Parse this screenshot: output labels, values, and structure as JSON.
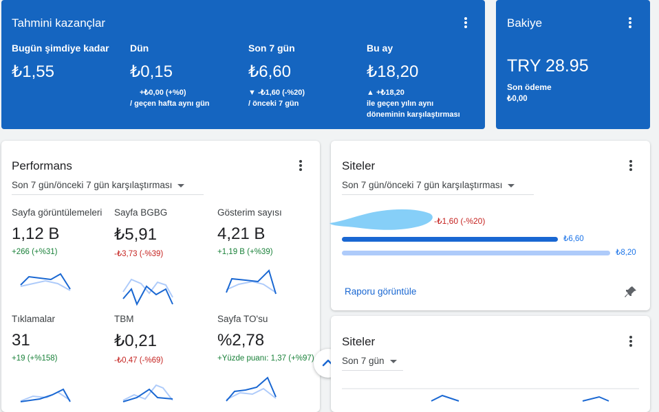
{
  "earnings": {
    "title": "Tahmini kazançlar",
    "columns": [
      {
        "label": "Bugün şimdiye kadar",
        "value": "₺1,55",
        "change": "",
        "compare": ""
      },
      {
        "label": "Dün",
        "value": "₺0,15",
        "change": "+₺0,00 (+%0)",
        "compare": "/ geçen hafta aynı gün"
      },
      {
        "label": "Son 7 gün",
        "value": "₺6,60",
        "change": "▼ -₺1,60 (-%20)",
        "compare": "/ önceki 7 gün"
      },
      {
        "label": "Bu ay",
        "value": "₺18,20",
        "change": "▲ +₺18,20",
        "compare": "ile geçen yılın aynı",
        "compare2": "döneminin karşılaştırması"
      }
    ]
  },
  "balance": {
    "title": "Bakiye",
    "value": "TRY 28.95",
    "last_payment_label": "Son ödeme",
    "last_payment_value": "₺0,00"
  },
  "performance": {
    "title": "Performans",
    "range": "Son 7 gün/önceki 7 gün karşılaştırması",
    "metrics": [
      {
        "label": "Sayfa görüntülemeleri",
        "value": "1,12 B",
        "delta": "+266 (+%31)",
        "trend": "up"
      },
      {
        "label": "Sayfa BGBG",
        "value": "₺5,91",
        "delta": "-₺3,73 (-%39)",
        "trend": "down"
      },
      {
        "label": "Gösterim sayısı",
        "value": "4,21 B",
        "delta": "+1,19 B (+%39)",
        "trend": "up"
      },
      {
        "label": "Tıklamalar",
        "value": "31",
        "delta": "+19 (+%158)",
        "trend": "up"
      },
      {
        "label": "TBM",
        "value": "₺0,21",
        "delta": "-₺0,47 (-%69)",
        "trend": "down"
      },
      {
        "label": "Sayfa TO'su",
        "value": "%2,78",
        "delta": "+Yüzde puanı: 1,37 (+%97)",
        "trend": "up"
      }
    ]
  },
  "sites_compare": {
    "title": "Siteler",
    "range": "Son 7 gün/önceki 7 gün karşılaştırması",
    "change": "-₺1,60 (-%20)",
    "current_value": "₺6,60",
    "previous_value": "₺8,20",
    "current_amount": 6.6,
    "previous_amount": 8.2,
    "link": "Raporu görüntüle"
  },
  "sites_7d": {
    "title": "Siteler",
    "range": "Son 7 gün"
  },
  "colors": {
    "accent": "#1565c0",
    "bar_current": "#1967d2",
    "bar_previous": "#aecbfa",
    "up": "#188038",
    "down": "#c5221f"
  }
}
